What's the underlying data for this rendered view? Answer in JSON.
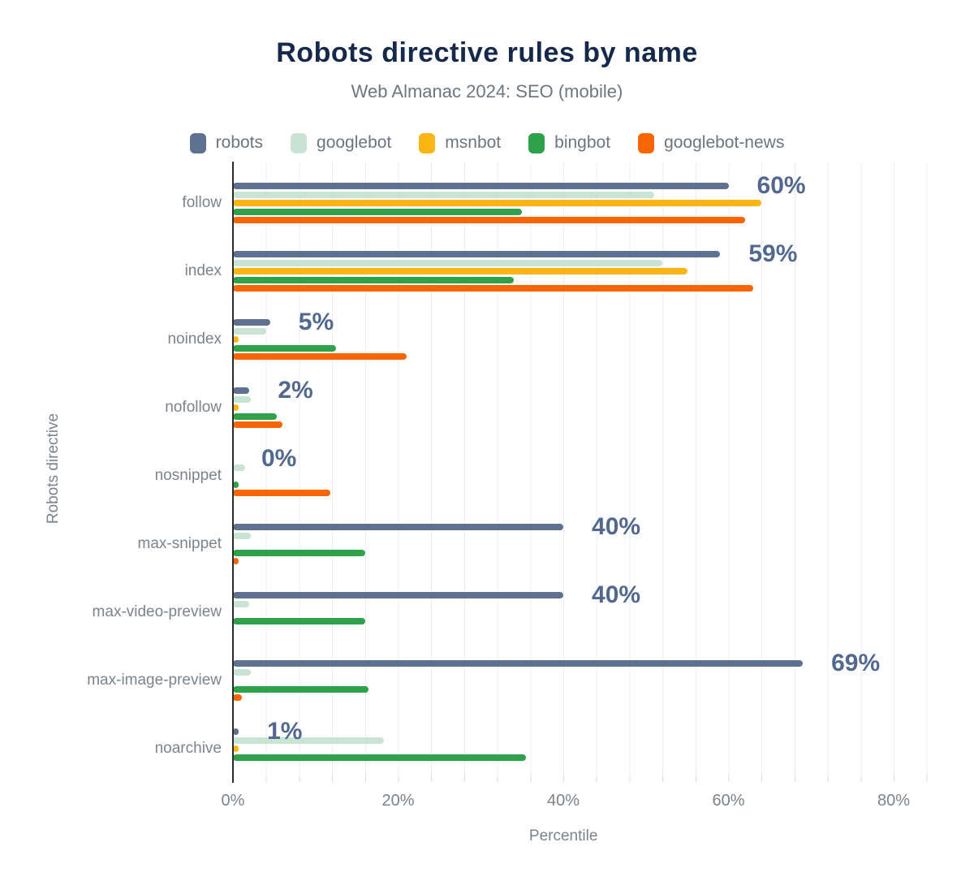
{
  "header": {
    "title": "Robots directive rules by name",
    "subtitle": "Web Almanac 2024: SEO (mobile)"
  },
  "colors": {
    "title": "#16294b",
    "subtitle": "#6e7681",
    "data_label": "#53688f",
    "axis_text": "#7d838c",
    "grid": "#ededf0",
    "axis_line": "#2d2d30"
  },
  "chart_data": {
    "type": "bar",
    "orientation": "horizontal",
    "title": "Robots directive rules by name",
    "subtitle": "Web Almanac 2024: SEO (mobile)",
    "xlabel": "Percentile",
    "ylabel": "Robots directive",
    "xlim": [
      0,
      85.5
    ],
    "x_ticks": [
      {
        "value": 0,
        "label": "0%"
      },
      {
        "value": 20,
        "label": "20%"
      },
      {
        "value": 40,
        "label": "40%"
      },
      {
        "value": 60,
        "label": "60%"
      },
      {
        "value": 80,
        "label": "80%"
      }
    ],
    "grid_interval_pct": 4,
    "grid_on": true,
    "legend_position": "top",
    "categories": [
      "follow",
      "index",
      "noindex",
      "nofollow",
      "nosnippet",
      "max-snippet",
      "max-video-preview",
      "max-image-preview",
      "noarchive"
    ],
    "series": [
      {
        "name": "robots",
        "color": "#5e7190",
        "values": [
          60,
          59,
          4.5,
          2,
          0,
          40,
          40,
          69,
          0.7
        ]
      },
      {
        "name": "googlebot",
        "color": "#c9e4d4",
        "values": [
          51,
          52,
          4,
          2.2,
          1.5,
          2.2,
          2,
          2.2,
          18.3
        ]
      },
      {
        "name": "msnbot",
        "color": "#fbb615",
        "values": [
          64,
          55,
          0.4,
          0.4,
          0,
          0,
          0,
          0,
          0.3
        ]
      },
      {
        "name": "bingbot",
        "color": "#2fa14b",
        "values": [
          35,
          34,
          12.5,
          5.3,
          0.7,
          16,
          16,
          16.4,
          35.5
        ]
      },
      {
        "name": "googlebot-news",
        "color": "#f96500",
        "values": [
          62,
          63,
          21,
          6,
          11.8,
          0.3,
          0,
          1.1,
          0
        ]
      }
    ],
    "data_labels": [
      "60%",
      "59%",
      "5%",
      "2%",
      "0%",
      "40%",
      "40%",
      "69%",
      "1%"
    ]
  }
}
